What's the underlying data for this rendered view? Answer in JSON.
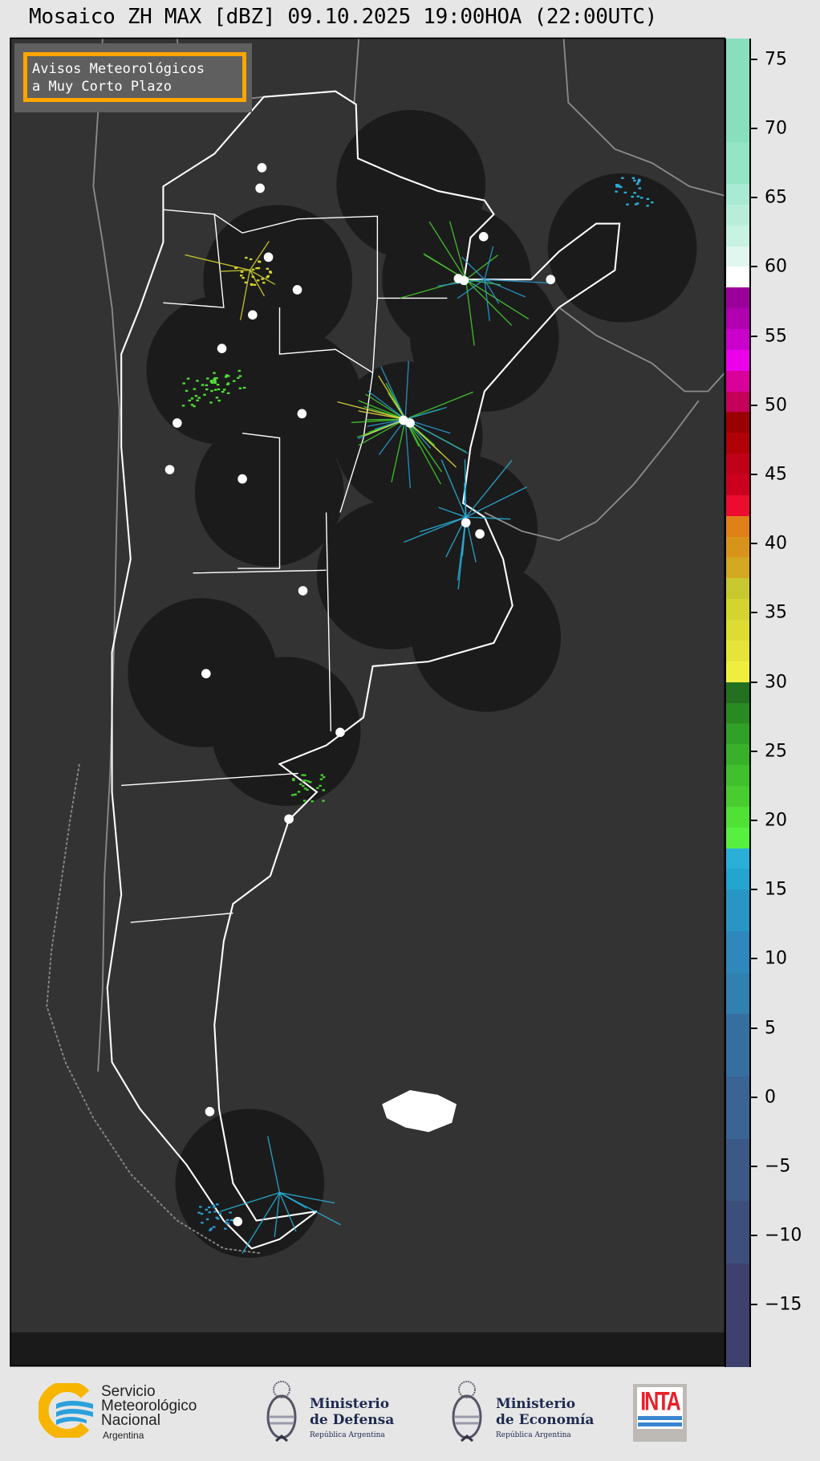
{
  "title": "Mosaico ZH MAX [dBZ] 09.10.2025 19:00HOA (22:00UTC)",
  "legend_box": {
    "line1": "Avisos Meteorológicos",
    "line2": "a Muy Corto Plazo",
    "border_color": "#ffa500"
  },
  "colorbar": {
    "unit": "dBZ",
    "range": [
      -19.5,
      76.5
    ],
    "ticks": [
      "75",
      "70",
      "65",
      "60",
      "55",
      "50",
      "45",
      "40",
      "35",
      "30",
      "25",
      "20",
      "15",
      "10",
      "5",
      "0",
      "−5",
      "−10",
      "−15"
    ],
    "tick_values": [
      75,
      70,
      65,
      60,
      55,
      50,
      45,
      40,
      35,
      30,
      25,
      20,
      15,
      10,
      5,
      0,
      -5,
      -10,
      -15
    ],
    "segments": [
      {
        "from": 69,
        "to": 76.5,
        "color": "#88dfbd"
      },
      {
        "from": 66,
        "to": 69,
        "color": "#94e4c6"
      },
      {
        "from": 64.5,
        "to": 66,
        "color": "#a8ead3"
      },
      {
        "from": 63,
        "to": 64.5,
        "color": "#b8eed9"
      },
      {
        "from": 61.5,
        "to": 63,
        "color": "#c8f2e2"
      },
      {
        "from": 60,
        "to": 61.5,
        "color": "#e0f6ee"
      },
      {
        "from": 58.5,
        "to": 60,
        "color": "#ffffff"
      },
      {
        "from": 57,
        "to": 58.5,
        "color": "#9b009b"
      },
      {
        "from": 55.5,
        "to": 57,
        "color": "#b000b0"
      },
      {
        "from": 54,
        "to": 55.5,
        "color": "#cc00cc"
      },
      {
        "from": 52.5,
        "to": 54,
        "color": "#ec00ec"
      },
      {
        "from": 51,
        "to": 52.5,
        "color": "#d9009b"
      },
      {
        "from": 49.5,
        "to": 51,
        "color": "#c4005a"
      },
      {
        "from": 48,
        "to": 49.5,
        "color": "#9b0000"
      },
      {
        "from": 46.5,
        "to": 48,
        "color": "#b00008"
      },
      {
        "from": 45,
        "to": 46.5,
        "color": "#c00018"
      },
      {
        "from": 43.5,
        "to": 45,
        "color": "#cc001e"
      },
      {
        "from": 42,
        "to": 43.5,
        "color": "#ec0c30"
      },
      {
        "from": 40.5,
        "to": 42,
        "color": "#e08018"
      },
      {
        "from": 39,
        "to": 40.5,
        "color": "#d8941a"
      },
      {
        "from": 37.5,
        "to": 39,
        "color": "#d4a820"
      },
      {
        "from": 36,
        "to": 37.5,
        "color": "#c8c830"
      },
      {
        "from": 34.5,
        "to": 36,
        "color": "#d4d430"
      },
      {
        "from": 33,
        "to": 34.5,
        "color": "#dcdc34"
      },
      {
        "from": 31.5,
        "to": 33,
        "color": "#e4e43a"
      },
      {
        "from": 30,
        "to": 31.5,
        "color": "#eeee40"
      },
      {
        "from": 28.5,
        "to": 30,
        "color": "#227020"
      },
      {
        "from": 27,
        "to": 28.5,
        "color": "#2a8a22"
      },
      {
        "from": 25.5,
        "to": 27,
        "color": "#30a026"
      },
      {
        "from": 24,
        "to": 25.5,
        "color": "#38b02a"
      },
      {
        "from": 22.5,
        "to": 24,
        "color": "#40c02c"
      },
      {
        "from": 21,
        "to": 22.5,
        "color": "#48cc30"
      },
      {
        "from": 19.5,
        "to": 21,
        "color": "#50e036"
      },
      {
        "from": 18,
        "to": 19.5,
        "color": "#58f040"
      },
      {
        "from": 16.5,
        "to": 18,
        "color": "#2ab0d8"
      },
      {
        "from": 15,
        "to": 16.5,
        "color": "#24a4d0"
      },
      {
        "from": 12,
        "to": 15,
        "color": "#2896c4"
      },
      {
        "from": 9,
        "to": 12,
        "color": "#2e88bc"
      },
      {
        "from": 6,
        "to": 9,
        "color": "#3080b0"
      },
      {
        "from": 1.5,
        "to": 6,
        "color": "#366ea0"
      },
      {
        "from": -3,
        "to": 1.5,
        "color": "#3a6494"
      },
      {
        "from": -7.5,
        "to": -3,
        "color": "#3c5886"
      },
      {
        "from": -12,
        "to": -7.5,
        "color": "#3e4e7a"
      },
      {
        "from": -19.5,
        "to": -12,
        "color": "#3e416e"
      }
    ]
  },
  "map": {
    "background": "#333333",
    "radar_coverage_color": "#1b1b1b",
    "country_border_color": "#ffffff",
    "neighbor_border_color": "#8a8a8a",
    "radar_site_color": "#ffffff"
  },
  "footer": {
    "smn": {
      "line1": "Servicio",
      "line2": "Meteorológico",
      "line3": "Nacional",
      "line4": "Argentina"
    },
    "defensa": {
      "line1": "Ministerio",
      "line2": "de Defensa",
      "line3": "República Argentina"
    },
    "economia": {
      "line1": "Ministerio",
      "line2": "de Economía",
      "line3": "República Argentina"
    },
    "inta": {
      "label": "INTA"
    }
  }
}
